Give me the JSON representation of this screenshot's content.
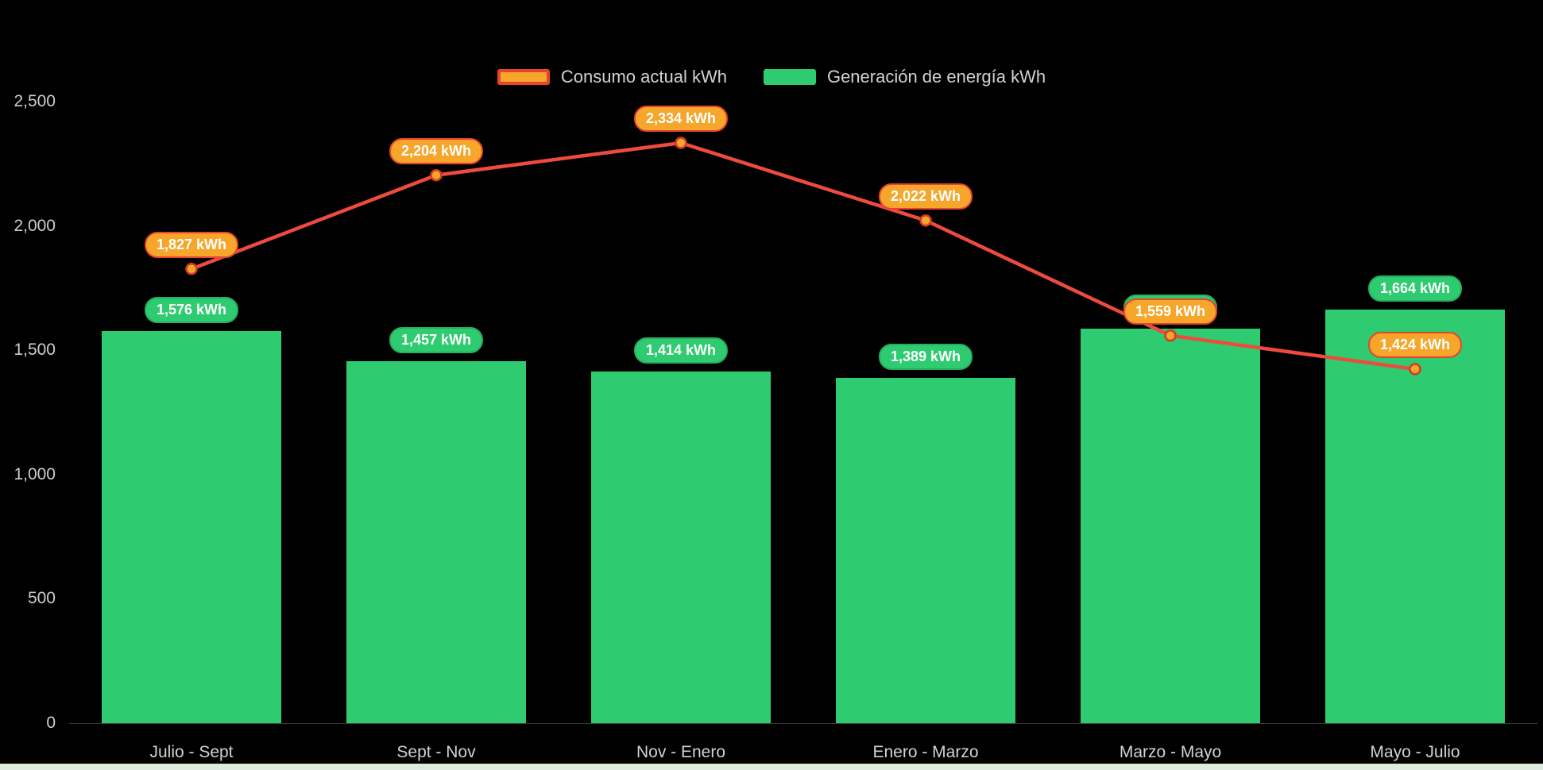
{
  "legend": {
    "items": [
      {
        "label": "Consumo actual kWh",
        "series": "consumo"
      },
      {
        "label": "Generación de energía kWh",
        "series": "generacion"
      }
    ]
  },
  "colors": {
    "background": "#000000",
    "bar_green": "#2ECB70",
    "badge_green_border": "#27AE60",
    "line_red": "#EE4B3E",
    "badge_orange": "#F5A62B",
    "badge_orange_border": "#E8432C",
    "point_ring": "#D43A25",
    "axis_text": "#CCCFCC",
    "bottom_strip": "#DCEADF"
  },
  "chart_data": {
    "type": "bar+line",
    "title": "",
    "xlabel": "",
    "ylabel": "",
    "categories": [
      "Julio - Sept",
      "Sept - Nov",
      "Nov - Enero",
      "Enero - Marzo",
      "Marzo - Mayo",
      "Mayo - Julio"
    ],
    "series": [
      {
        "name": "Consumo actual kWh",
        "type": "line",
        "values": [
          1827,
          2204,
          2334,
          2022,
          1559,
          1424
        ],
        "labels": [
          "1,827 kWh",
          "2,204 kWh",
          "2,334 kWh",
          "2,022 kWh",
          "1,559 kWh",
          "1,424 kWh"
        ]
      },
      {
        "name": "Generación de energía kWh",
        "type": "bar",
        "values": [
          1576,
          1457,
          1414,
          1389,
          1588,
          1664
        ],
        "labels": [
          "1,576 kWh",
          "1,457 kWh",
          "1,414 kWh",
          "1,389 kWh",
          "1,588 kWh",
          "1,664 kWh"
        ]
      }
    ],
    "ylim": [
      0,
      2500
    ],
    "yticks": [
      0,
      500,
      1000,
      1500,
      2000,
      2500
    ],
    "ytick_labels": [
      "0",
      "500",
      "1,000",
      "1,500",
      "2,000",
      "2,500"
    ],
    "grid": false,
    "legend_position": "top-center"
  }
}
